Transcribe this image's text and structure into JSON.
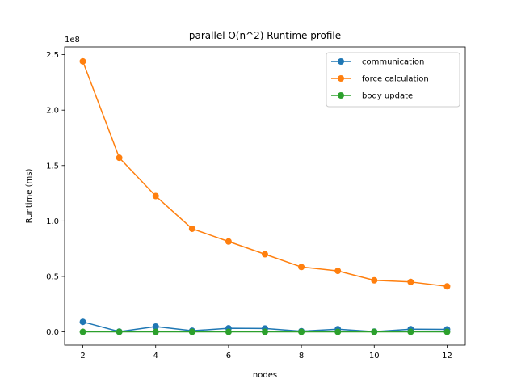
{
  "chart_data": {
    "type": "line",
    "title": "parallel O(n^2) Runtime profile",
    "xlabel": "nodes",
    "ylabel": "Runtime (ms)",
    "y_offset_label": "1e8",
    "x": [
      2,
      3,
      4,
      5,
      6,
      7,
      8,
      9,
      10,
      11,
      12
    ],
    "xlim": [
      1.5,
      12.5
    ],
    "ylim": [
      -12000000,
      257000000
    ],
    "x_ticks": [
      2,
      4,
      6,
      8,
      10,
      12
    ],
    "x_tick_labels": [
      "2",
      "4",
      "6",
      "8",
      "10",
      "12"
    ],
    "y_ticks": [
      0,
      50000000,
      100000000,
      150000000,
      200000000,
      250000000
    ],
    "y_tick_labels": [
      "0.0",
      "0.5",
      "1.0",
      "1.5",
      "2.0",
      "2.5"
    ],
    "grid": false,
    "legend_position": "top-right",
    "series": [
      {
        "name": "communication",
        "color": "#1f77b4",
        "values": [
          9000000,
          200000,
          4800000,
          1000000,
          3200000,
          3000000,
          600000,
          2400000,
          200000,
          2400000,
          2200000
        ]
      },
      {
        "name": "force calculation",
        "color": "#ff7f0e",
        "values": [
          244000000,
          157000000,
          122500000,
          93000000,
          81500000,
          70000000,
          58500000,
          55000000,
          46500000,
          45000000,
          41000000
        ]
      },
      {
        "name": "body update",
        "color": "#2ca02c",
        "values": [
          0,
          0,
          0,
          0,
          0,
          0,
          0,
          0,
          0,
          0,
          0
        ]
      }
    ]
  }
}
